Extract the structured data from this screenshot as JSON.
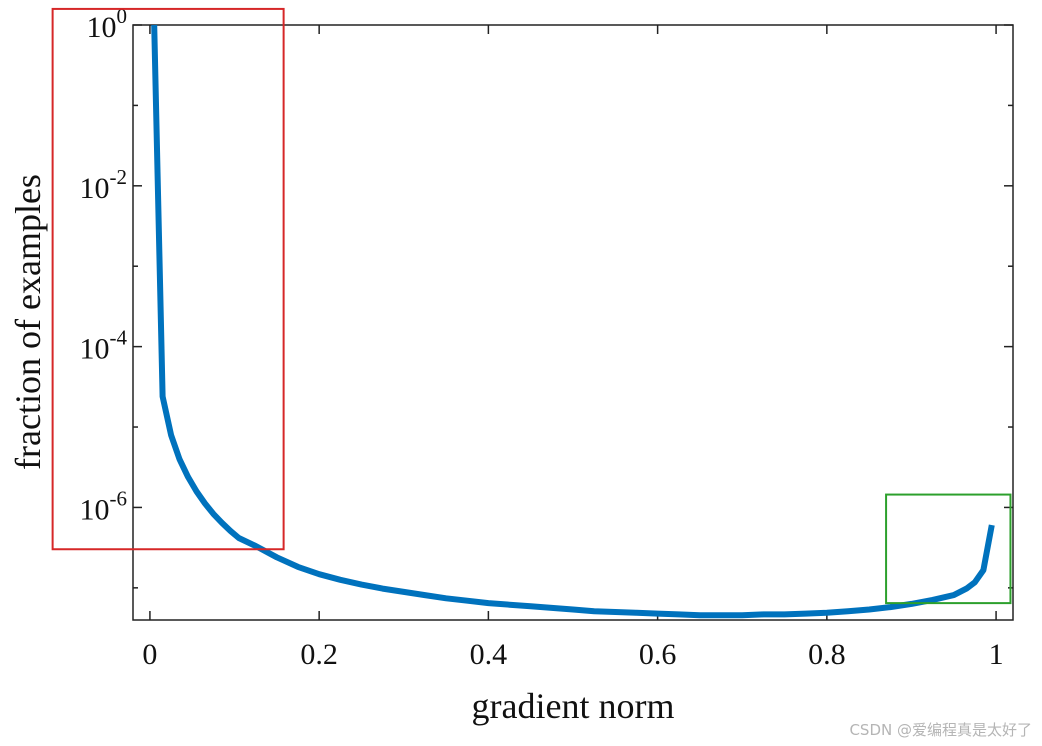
{
  "chart_data": {
    "type": "line",
    "title": "",
    "xlabel": "gradient norm",
    "ylabel": "fraction of examples",
    "xlim": [
      -0.02,
      1.02
    ],
    "ylim_log10": [
      -7.4,
      0
    ],
    "yscale": "log",
    "x_ticks": [
      {
        "value": 0,
        "label": "0"
      },
      {
        "value": 0.2,
        "label": "0.2"
      },
      {
        "value": 0.4,
        "label": "0.4"
      },
      {
        "value": 0.6,
        "label": "0.6"
      },
      {
        "value": 0.8,
        "label": "0.8"
      },
      {
        "value": 1,
        "label": "1"
      }
    ],
    "y_ticks": [
      {
        "exp": 0,
        "base": "10",
        "power": "0"
      },
      {
        "exp": -2,
        "base": "10",
        "power": "-2"
      },
      {
        "exp": -4,
        "base": "10",
        "power": "-4"
      },
      {
        "exp": -6,
        "base": "10",
        "power": "-6"
      }
    ],
    "series": [
      {
        "name": "fraction of examples",
        "color": "#0072BD",
        "x": [
          0.005,
          0.015,
          0.025,
          0.035,
          0.045,
          0.055,
          0.065,
          0.075,
          0.085,
          0.095,
          0.105,
          0.125,
          0.15,
          0.175,
          0.2,
          0.225,
          0.25,
          0.275,
          0.3,
          0.325,
          0.35,
          0.375,
          0.4,
          0.425,
          0.45,
          0.475,
          0.5,
          0.525,
          0.55,
          0.575,
          0.6,
          0.625,
          0.65,
          0.675,
          0.7,
          0.725,
          0.75,
          0.775,
          0.8,
          0.825,
          0.85,
          0.875,
          0.9,
          0.925,
          0.95,
          0.965,
          0.975,
          0.985,
          0.995
        ],
        "log10_y": [
          0,
          -4.62,
          -5.1,
          -5.4,
          -5.62,
          -5.8,
          -5.95,
          -6.08,
          -6.19,
          -6.29,
          -6.38,
          -6.48,
          -6.62,
          -6.74,
          -6.83,
          -6.9,
          -6.96,
          -7.01,
          -7.05,
          -7.09,
          -7.13,
          -7.16,
          -7.19,
          -7.21,
          -7.23,
          -7.25,
          -7.27,
          -7.29,
          -7.3,
          -7.31,
          -7.32,
          -7.33,
          -7.34,
          -7.34,
          -7.34,
          -7.33,
          -7.33,
          -7.32,
          -7.31,
          -7.29,
          -7.27,
          -7.24,
          -7.2,
          -7.15,
          -7.09,
          -7.01,
          -6.93,
          -6.78,
          -6.22
        ]
      }
    ],
    "highlight_boxes": [
      {
        "name": "low-gradient-region",
        "color": "#d62728",
        "x_range": [
          -0.115,
          0.158
        ],
        "log10_y_range": [
          -6.52,
          0.2
        ]
      },
      {
        "name": "high-gradient-region",
        "color": "#2ca02c",
        "x_range": [
          0.87,
          1.017
        ],
        "log10_y_range": [
          -7.19,
          -5.84
        ]
      }
    ]
  },
  "watermark": "CSDN @爱编程真是太好了"
}
